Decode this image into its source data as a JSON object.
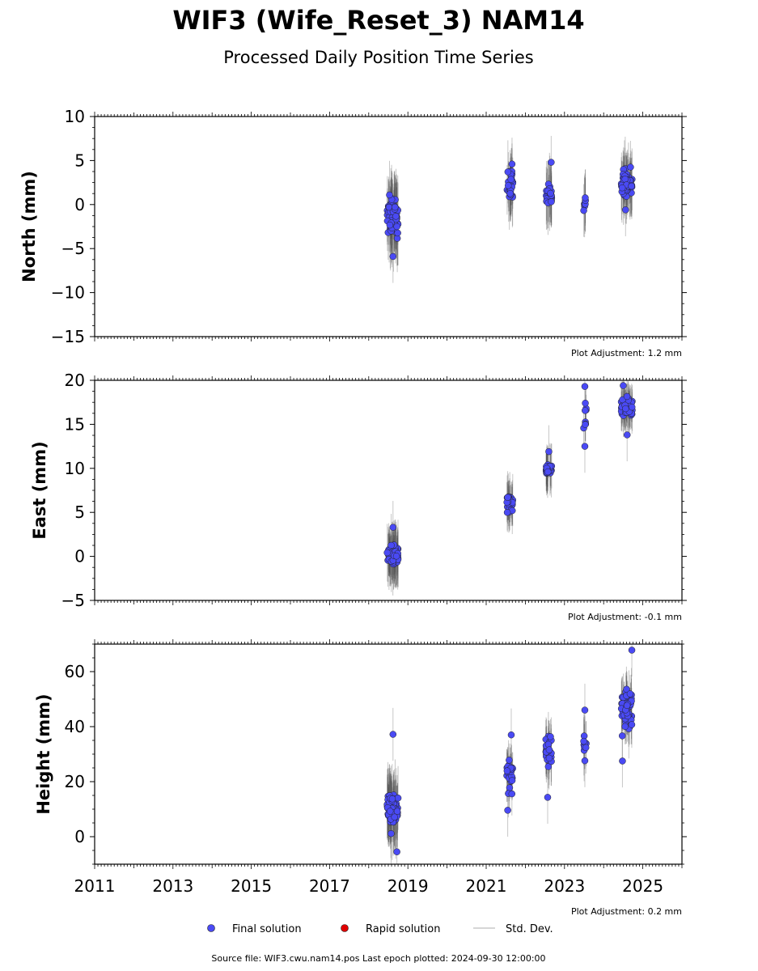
{
  "title": "WIF3 (Wife_Reset_3) NAM14",
  "subtitle": "Processed Daily Position Time Series",
  "footer": "Source file: WIF3.cwu.nam14.pos  Last epoch plotted: 2024-09-30 12:00:00",
  "legend": [
    {
      "label": "Final solution",
      "marker": "dot",
      "color": "#4a4af4"
    },
    {
      "label": "Rapid solution",
      "marker": "dot",
      "color": "#e00000"
    },
    {
      "label": "Std. Dev.",
      "marker": "line",
      "color": "#c8c8c8"
    }
  ],
  "colors": {
    "final": "#4a4af4",
    "rapid": "#e00000",
    "std": "#444444"
  },
  "chart_data": [
    {
      "type": "scatter",
      "ylabel": "North (mm)",
      "adjustment": "Plot Adjustment: 1.2 mm",
      "xlim": [
        2011.0,
        2026.0
      ],
      "ylim": [
        -15,
        10
      ],
      "yticks": [
        -15,
        -10,
        -5,
        0,
        5,
        10
      ],
      "clusters": [
        {
          "x": [
            2018.47,
            2018.75
          ],
          "center": -1.4,
          "spread": 2.4,
          "err": 4.0,
          "n": 70
        },
        {
          "x": [
            2021.52,
            2021.68
          ],
          "center": 2.0,
          "spread": 1.6,
          "err": 3.2,
          "n": 30
        },
        {
          "x": [
            2022.52,
            2022.68
          ],
          "center": 1.1,
          "spread": 1.2,
          "err": 3.4,
          "n": 25
        },
        {
          "x": [
            2023.49,
            2023.56
          ],
          "center": 0.0,
          "spread": 1.3,
          "err": 3.0,
          "n": 8
        },
        {
          "x": [
            2024.45,
            2024.73
          ],
          "center": 2.6,
          "spread": 1.4,
          "err": 3.3,
          "n": 55
        }
      ],
      "extreme_points": [
        {
          "x": 2018.62,
          "y": -5.9
        },
        {
          "x": 2021.66,
          "y": 4.6
        },
        {
          "x": 2022.66,
          "y": 4.8
        },
        {
          "x": 2024.56,
          "y": -0.6
        }
      ]
    },
    {
      "type": "scatter",
      "ylabel": "East (mm)",
      "adjustment": "Plot Adjustment: -0.1 mm",
      "xlim": [
        2011.0,
        2026.0
      ],
      "ylim": [
        -5,
        20
      ],
      "yticks": [
        -5,
        0,
        5,
        10,
        15,
        20
      ],
      "clusters": [
        {
          "x": [
            2018.47,
            2018.75
          ],
          "center": 0.1,
          "spread": 1.1,
          "err": 3.0,
          "n": 70
        },
        {
          "x": [
            2021.52,
            2021.68
          ],
          "center": 6.0,
          "spread": 1.1,
          "err": 2.5,
          "n": 30
        },
        {
          "x": [
            2022.52,
            2022.68
          ],
          "center": 10.0,
          "spread": 0.9,
          "err": 2.6,
          "n": 25
        },
        {
          "x": [
            2023.49,
            2023.56
          ],
          "center": 15.0,
          "spread": 2.2,
          "err": 2.0,
          "n": 8
        },
        {
          "x": [
            2024.45,
            2024.73
          ],
          "center": 17.0,
          "spread": 1.0,
          "err": 2.2,
          "n": 55
        }
      ],
      "extreme_points": [
        {
          "x": 2018.62,
          "y": 3.3
        },
        {
          "x": 2022.6,
          "y": 11.9
        },
        {
          "x": 2023.52,
          "y": 19.3
        },
        {
          "x": 2023.52,
          "y": 12.5
        },
        {
          "x": 2024.6,
          "y": 13.8
        },
        {
          "x": 2024.5,
          "y": 19.4
        }
      ]
    },
    {
      "type": "scatter",
      "ylabel": "Height (mm)",
      "adjustment": "Plot Adjustment: 0.2 mm",
      "xlim": [
        2011.0,
        2026.0
      ],
      "ylim": [
        -10,
        70
      ],
      "yticks": [
        0,
        20,
        40,
        60
      ],
      "xticks": [
        2011,
        2013,
        2015,
        2017,
        2019,
        2021,
        2023,
        2025
      ],
      "clusters": [
        {
          "x": [
            2018.47,
            2018.75
          ],
          "center": 10.0,
          "spread": 6.0,
          "err": 12.0,
          "n": 70
        },
        {
          "x": [
            2021.52,
            2021.68
          ],
          "center": 23.0,
          "spread": 5.0,
          "err": 8.0,
          "n": 30
        },
        {
          "x": [
            2022.52,
            2022.68
          ],
          "center": 31.0,
          "spread": 5.5,
          "err": 9.0,
          "n": 25
        },
        {
          "x": [
            2023.49,
            2023.56
          ],
          "center": 34.0,
          "spread": 4.5,
          "err": 10.0,
          "n": 8
        },
        {
          "x": [
            2024.45,
            2024.73
          ],
          "center": 46.0,
          "spread": 8.0,
          "err": 9.0,
          "n": 55
        }
      ],
      "extreme_points": [
        {
          "x": 2018.62,
          "y": 37.2
        },
        {
          "x": 2018.72,
          "y": -5.5
        },
        {
          "x": 2021.64,
          "y": 37.0
        },
        {
          "x": 2021.55,
          "y": 9.6
        },
        {
          "x": 2022.57,
          "y": 14.3
        },
        {
          "x": 2023.52,
          "y": 46.0
        },
        {
          "x": 2023.52,
          "y": 27.6
        },
        {
          "x": 2024.72,
          "y": 67.8
        },
        {
          "x": 2024.48,
          "y": 27.5
        }
      ]
    }
  ]
}
